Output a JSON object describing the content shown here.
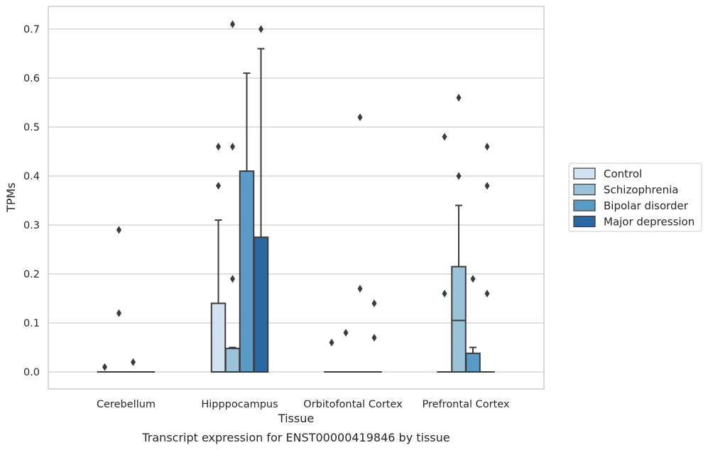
{
  "chart_data": {
    "type": "box",
    "caption": "Transcript expression for ENST00000419846 by tissue",
    "xlabel": "Tissue",
    "ylabel": "TPMs",
    "ylim": [
      -0.035,
      0.745
    ],
    "yticks": [
      0.0,
      0.1,
      0.2,
      0.3,
      0.4,
      0.5,
      0.6,
      0.7
    ],
    "ytick_labels": [
      "0.0",
      "0.1",
      "0.2",
      "0.3",
      "0.4",
      "0.5",
      "0.6",
      "0.7"
    ],
    "grid": true,
    "legend_position": "outside-right",
    "categories": [
      "Cerebellum",
      "Hipppocampus",
      "Orbitofontal Cortex",
      "Prefrontal Cortex"
    ],
    "series": [
      {
        "name": "Control",
        "color": "#d3e2f1",
        "boxes": [
          {
            "q1": 0,
            "median": 0,
            "q3": 0,
            "whisker_low": 0,
            "whisker_high": 0,
            "outliers": [
              0.01
            ]
          },
          {
            "q1": 0,
            "median": 0,
            "q3": 0.14,
            "whisker_low": 0,
            "whisker_high": 0.31,
            "outliers": [
              0.38,
              0.46
            ]
          },
          {
            "q1": 0,
            "median": 0,
            "q3": 0,
            "whisker_low": 0,
            "whisker_high": 0,
            "outliers": [
              0.06
            ]
          },
          {
            "q1": 0,
            "median": 0,
            "q3": 0,
            "whisker_low": 0,
            "whisker_high": 0,
            "outliers": [
              0.16,
              0.48
            ]
          }
        ]
      },
      {
        "name": "Schizophrenia",
        "color": "#9ac3da",
        "boxes": [
          {
            "q1": 0,
            "median": 0,
            "q3": 0,
            "whisker_low": 0,
            "whisker_high": 0,
            "outliers": [
              0.12,
              0.29
            ]
          },
          {
            "q1": 0,
            "median": 0,
            "q3": 0.048,
            "whisker_low": 0,
            "whisker_high": 0.05,
            "outliers": [
              0.19,
              0.46,
              0.71
            ]
          },
          {
            "q1": 0,
            "median": 0,
            "q3": 0,
            "whisker_low": 0,
            "whisker_high": 0,
            "outliers": [
              0.08
            ]
          },
          {
            "q1": 0,
            "median": 0.105,
            "q3": 0.215,
            "whisker_low": 0,
            "whisker_high": 0.34,
            "outliers": [
              0.4,
              0.56
            ]
          }
        ]
      },
      {
        "name": "Bipolar disorder",
        "color": "#5a9ac6",
        "boxes": [
          {
            "q1": 0,
            "median": 0,
            "q3": 0,
            "whisker_low": 0,
            "whisker_high": 0,
            "outliers": [
              0.02
            ]
          },
          {
            "q1": 0,
            "median": 0,
            "q3": 0.41,
            "whisker_low": 0,
            "whisker_high": 0.61,
            "outliers": []
          },
          {
            "q1": 0,
            "median": 0,
            "q3": 0,
            "whisker_low": 0,
            "whisker_high": 0,
            "outliers": [
              0.17,
              0.52
            ]
          },
          {
            "q1": 0,
            "median": 0,
            "q3": 0.038,
            "whisker_low": 0,
            "whisker_high": 0.05,
            "outliers": [
              0.19
            ]
          }
        ]
      },
      {
        "name": "Major depression",
        "color": "#2a67a5",
        "boxes": [
          {
            "q1": 0,
            "median": 0,
            "q3": 0,
            "whisker_low": 0,
            "whisker_high": 0,
            "outliers": []
          },
          {
            "q1": 0,
            "median": 0,
            "q3": 0.275,
            "whisker_low": 0,
            "whisker_high": 0.66,
            "outliers": [
              0.7
            ]
          },
          {
            "q1": 0,
            "median": 0,
            "q3": 0,
            "whisker_low": 0,
            "whisker_high": 0,
            "outliers": [
              0.07,
              0.14
            ]
          },
          {
            "q1": 0,
            "median": 0,
            "q3": 0,
            "whisker_low": 0,
            "whisker_high": 0,
            "outliers": [
              0.16,
              0.38,
              0.46
            ]
          }
        ]
      }
    ],
    "style": {
      "edge_color": "#3b3b3b",
      "grid_color": "#cfcfcf",
      "frame_color": "#cccccc",
      "outlier_color": "#3b3b3b"
    }
  }
}
